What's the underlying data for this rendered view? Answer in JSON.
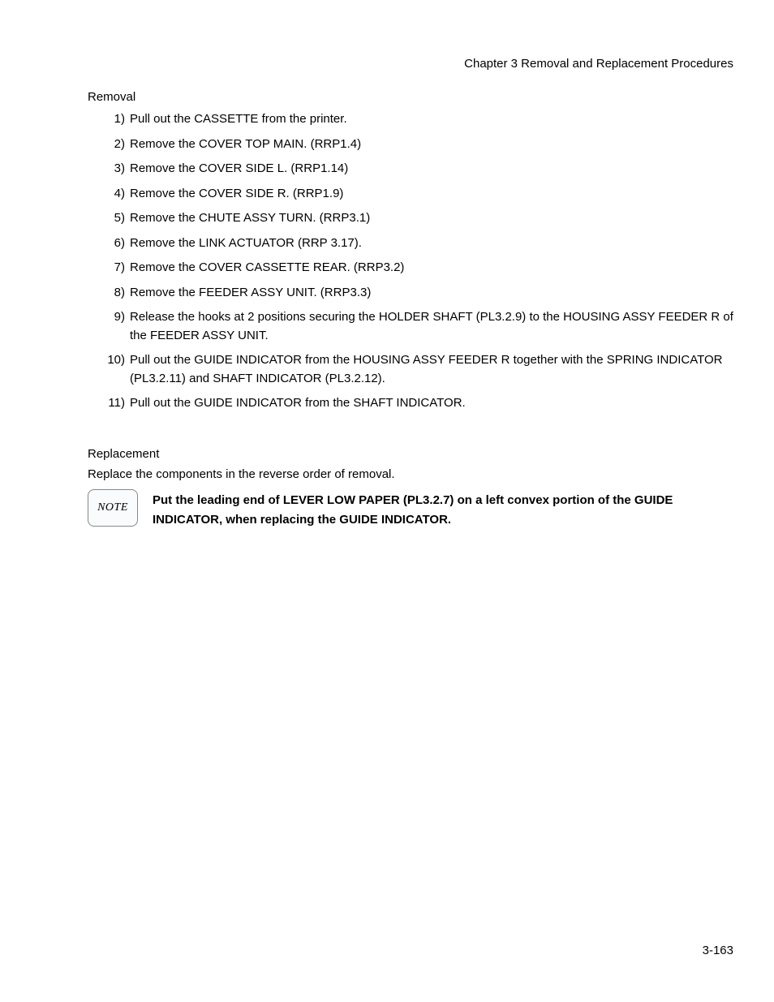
{
  "header": {
    "chapterTitle": "Chapter 3  Removal and Replacement Procedures"
  },
  "removal": {
    "title": "Removal",
    "steps": [
      "Pull out the CASSETTE from the printer.",
      "Remove the COVER TOP MAIN. (RRP1.4)",
      "Remove the COVER SIDE L. (RRP1.14)",
      "Remove the COVER SIDE R. (RRP1.9)",
      "Remove the CHUTE ASSY TURN. (RRP3.1)",
      "Remove the LINK ACTUATOR (RRP 3.17).",
      "Remove the COVER CASSETTE REAR. (RRP3.2)",
      "Remove the FEEDER ASSY UNIT. (RRP3.3)",
      "Release the hooks at 2 positions securing the HOLDER SHAFT (PL3.2.9) to the HOUSING ASSY FEEDER R of the FEEDER ASSY UNIT.",
      "Pull out the GUIDE INDICATOR from the HOUSING ASSY FEEDER R together with the SPRING INDICATOR (PL3.2.11) and SHAFT INDICATOR (PL3.2.12).",
      "Pull out the GUIDE INDICATOR from the SHAFT INDICATOR."
    ]
  },
  "replacement": {
    "title": "Replacement",
    "intro": "Replace the components in the reverse order of removal.",
    "noteLabel": "NOTE",
    "noteText": "Put the leading end of LEVER LOW PAPER (PL3.2.7) on a left convex portion of the GUIDE INDICATOR, when replacing the GUIDE INDICATOR."
  },
  "pageNumber": "3-163",
  "styles": {
    "backgroundColor": "#ffffff",
    "textColor": "#000000",
    "noteBoxBorderColor": "#888888",
    "noteBoxBackgroundColor": "#f9fbfd",
    "bodyFontSize": 15,
    "noteFontSize": 14
  }
}
